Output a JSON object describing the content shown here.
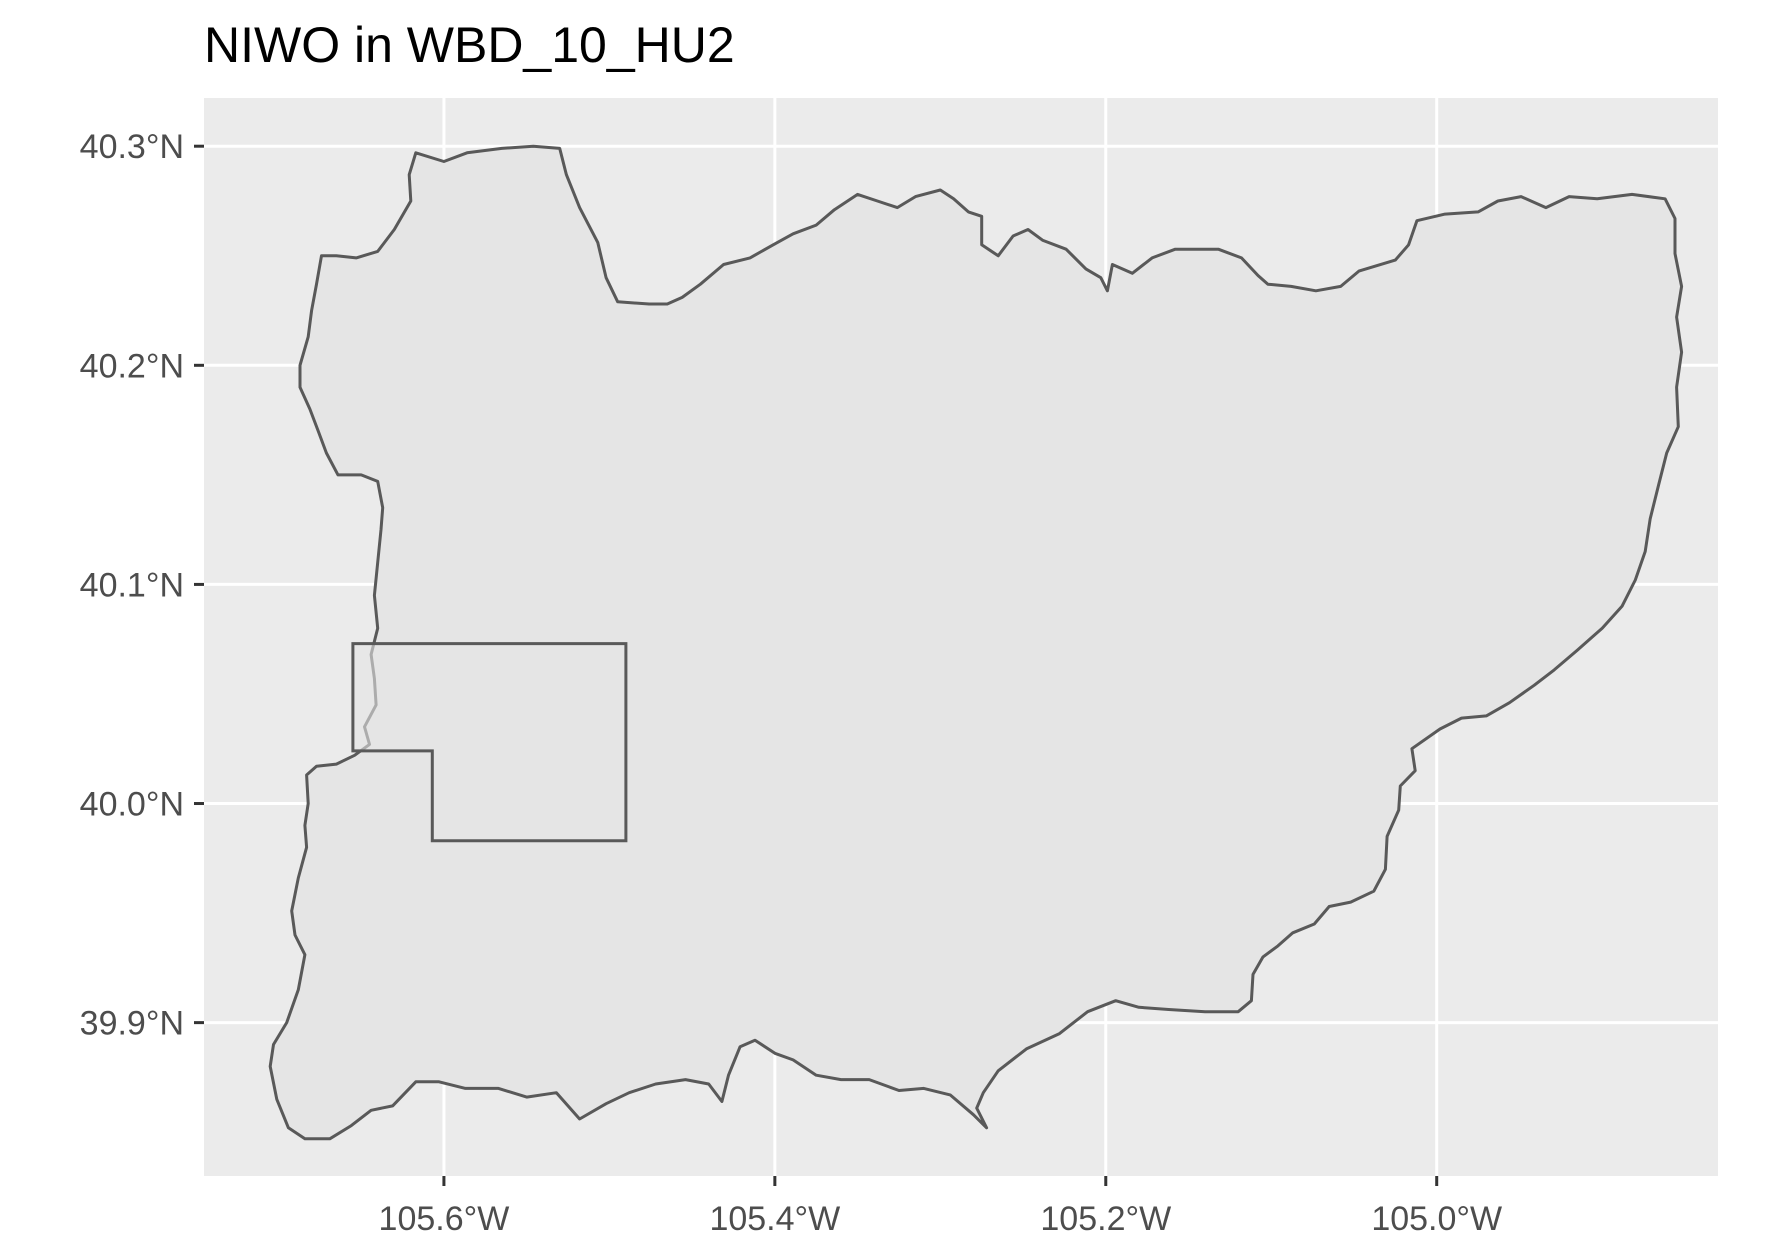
{
  "title": "NIWO in WBD_10_HU2",
  "colors": {
    "panel_background": "#ebebeb",
    "gridline": "#ffffff",
    "polygon_fill": "#e5e5e5",
    "polygon_outline": "#595959",
    "axis_text": "#4d4d4d",
    "title_text": "#000000"
  },
  "axes": {
    "x": {
      "ticks": [
        -105.6,
        -105.4,
        -105.2,
        -105.0
      ],
      "labels": [
        "105.6°W",
        "105.4°W",
        "105.2°W",
        "105.0°W"
      ],
      "range": [
        -105.745,
        -104.83
      ]
    },
    "y": {
      "ticks": [
        39.9,
        40.0,
        40.1,
        40.2,
        40.3
      ],
      "labels": [
        "39.9°N",
        "40.0°N",
        "40.1°N",
        "40.2°N",
        "40.3°N"
      ],
      "range": [
        39.83,
        40.322
      ]
    },
    "grid": true
  },
  "features": {
    "watershed": {
      "layer": "WBD_10_HU2",
      "coords": [
        [
          -105.617,
          40.297
        ],
        [
          -105.6,
          40.293
        ],
        [
          -105.586,
          40.297
        ],
        [
          -105.565,
          40.299
        ],
        [
          -105.546,
          40.3
        ],
        [
          -105.53,
          40.299
        ],
        [
          -105.526,
          40.287
        ],
        [
          -105.518,
          40.272
        ],
        [
          -105.507,
          40.256
        ],
        [
          -105.502,
          40.24
        ],
        [
          -105.495,
          40.229
        ],
        [
          -105.476,
          40.228
        ],
        [
          -105.465,
          40.228
        ],
        [
          -105.456,
          40.231
        ],
        [
          -105.445,
          40.237
        ],
        [
          -105.431,
          40.246
        ],
        [
          -105.415,
          40.249
        ],
        [
          -105.401,
          40.255
        ],
        [
          -105.389,
          40.26
        ],
        [
          -105.375,
          40.264
        ],
        [
          -105.364,
          40.271
        ],
        [
          -105.35,
          40.278
        ],
        [
          -105.338,
          40.275
        ],
        [
          -105.326,
          40.272
        ],
        [
          -105.315,
          40.277
        ],
        [
          -105.3,
          40.28
        ],
        [
          -105.292,
          40.276
        ],
        [
          -105.283,
          40.27
        ],
        [
          -105.275,
          40.268
        ],
        [
          -105.275,
          40.255
        ],
        [
          -105.265,
          40.25
        ],
        [
          -105.256,
          40.259
        ],
        [
          -105.247,
          40.262
        ],
        [
          -105.238,
          40.257
        ],
        [
          -105.224,
          40.253
        ],
        [
          -105.212,
          40.244
        ],
        [
          -105.203,
          40.24
        ],
        [
          -105.199,
          40.234
        ],
        [
          -105.196,
          40.246
        ],
        [
          -105.184,
          40.242
        ],
        [
          -105.172,
          40.249
        ],
        [
          -105.158,
          40.253
        ],
        [
          -105.146,
          40.253
        ],
        [
          -105.132,
          40.253
        ],
        [
          -105.118,
          40.249
        ],
        [
          -105.108,
          40.241
        ],
        [
          -105.102,
          40.237
        ],
        [
          -105.088,
          40.236
        ],
        [
          -105.073,
          40.234
        ],
        [
          -105.058,
          40.236
        ],
        [
          -105.047,
          40.243
        ],
        [
          -105.025,
          40.248
        ],
        [
          -105.017,
          40.255
        ],
        [
          -105.012,
          40.266
        ],
        [
          -104.995,
          40.269
        ],
        [
          -104.975,
          40.27
        ],
        [
          -104.963,
          40.275
        ],
        [
          -104.949,
          40.277
        ],
        [
          -104.934,
          40.272
        ],
        [
          -104.92,
          40.277
        ],
        [
          -104.903,
          40.276
        ],
        [
          -104.882,
          40.278
        ],
        [
          -104.862,
          40.276
        ],
        [
          -104.856,
          40.267
        ],
        [
          -104.856,
          40.251
        ],
        [
          -104.852,
          40.236
        ],
        [
          -104.855,
          40.222
        ],
        [
          -104.852,
          40.206
        ],
        [
          -104.855,
          40.19
        ],
        [
          -104.854,
          40.172
        ],
        [
          -104.861,
          40.16
        ],
        [
          -104.866,
          40.145
        ],
        [
          -104.871,
          40.13
        ],
        [
          -104.874,
          40.115
        ],
        [
          -104.88,
          40.102
        ],
        [
          -104.888,
          40.09
        ],
        [
          -104.9,
          40.08
        ],
        [
          -104.915,
          40.07
        ],
        [
          -104.929,
          40.061
        ],
        [
          -104.941,
          40.054
        ],
        [
          -104.956,
          40.046
        ],
        [
          -104.97,
          40.04
        ],
        [
          -104.985,
          40.039
        ],
        [
          -104.998,
          40.034
        ],
        [
          -105.015,
          40.025
        ],
        [
          -105.013,
          40.015
        ],
        [
          -105.022,
          40.008
        ],
        [
          -105.023,
          39.997
        ],
        [
          -105.03,
          39.985
        ],
        [
          -105.031,
          39.97
        ],
        [
          -105.038,
          39.96
        ],
        [
          -105.052,
          39.955
        ],
        [
          -105.065,
          39.953
        ],
        [
          -105.074,
          39.945
        ],
        [
          -105.087,
          39.941
        ],
        [
          -105.096,
          39.935
        ],
        [
          -105.105,
          39.93
        ],
        [
          -105.111,
          39.922
        ],
        [
          -105.112,
          39.91
        ],
        [
          -105.12,
          39.905
        ],
        [
          -105.14,
          39.905
        ],
        [
          -105.162,
          39.906
        ],
        [
          -105.18,
          39.907
        ],
        [
          -105.194,
          39.91
        ],
        [
          -105.211,
          39.905
        ],
        [
          -105.228,
          39.895
        ],
        [
          -105.248,
          39.888
        ],
        [
          -105.265,
          39.878
        ],
        [
          -105.274,
          39.868
        ],
        [
          -105.278,
          39.861
        ],
        [
          -105.272,
          39.852
        ],
        [
          -105.28,
          39.858
        ],
        [
          -105.294,
          39.867
        ],
        [
          -105.31,
          39.87
        ],
        [
          -105.325,
          39.869
        ],
        [
          -105.343,
          39.874
        ],
        [
          -105.36,
          39.874
        ],
        [
          -105.375,
          39.876
        ],
        [
          -105.389,
          39.883
        ],
        [
          -105.4,
          39.886
        ],
        [
          -105.412,
          39.892
        ],
        [
          -105.421,
          39.889
        ],
        [
          -105.428,
          39.876
        ],
        [
          -105.432,
          39.864
        ],
        [
          -105.44,
          39.872
        ],
        [
          -105.454,
          39.874
        ],
        [
          -105.472,
          39.872
        ],
        [
          -105.488,
          39.868
        ],
        [
          -105.502,
          39.863
        ],
        [
          -105.518,
          39.856
        ],
        [
          -105.532,
          39.868
        ],
        [
          -105.55,
          39.866
        ],
        [
          -105.567,
          39.87
        ],
        [
          -105.587,
          39.87
        ],
        [
          -105.603,
          39.873
        ],
        [
          -105.617,
          39.873
        ],
        [
          -105.631,
          39.862
        ],
        [
          -105.644,
          39.86
        ],
        [
          -105.656,
          39.853
        ],
        [
          -105.669,
          39.847
        ],
        [
          -105.684,
          39.847
        ],
        [
          -105.694,
          39.852
        ],
        [
          -105.701,
          39.865
        ],
        [
          -105.705,
          39.88
        ],
        [
          -105.703,
          39.89
        ],
        [
          -105.695,
          39.9
        ],
        [
          -105.688,
          39.915
        ],
        [
          -105.684,
          39.931
        ],
        [
          -105.69,
          39.94
        ],
        [
          -105.692,
          39.951
        ],
        [
          -105.688,
          39.966
        ],
        [
          -105.683,
          39.98
        ],
        [
          -105.684,
          39.99
        ],
        [
          -105.682,
          40.0
        ],
        [
          -105.683,
          40.013
        ],
        [
          -105.677,
          40.017
        ],
        [
          -105.665,
          40.018
        ],
        [
          -105.654,
          40.022
        ],
        [
          -105.645,
          40.027
        ],
        [
          -105.648,
          40.035
        ],
        [
          -105.641,
          40.045
        ],
        [
          -105.642,
          40.057
        ],
        [
          -105.644,
          40.068
        ],
        [
          -105.64,
          40.08
        ],
        [
          -105.642,
          40.095
        ],
        [
          -105.64,
          40.11
        ],
        [
          -105.638,
          40.125
        ],
        [
          -105.637,
          40.135
        ],
        [
          -105.64,
          40.147
        ],
        [
          -105.65,
          40.15
        ],
        [
          -105.664,
          40.15
        ],
        [
          -105.671,
          40.16
        ],
        [
          -105.676,
          40.17
        ],
        [
          -105.681,
          40.18
        ],
        [
          -105.687,
          40.19
        ],
        [
          -105.687,
          40.2
        ],
        [
          -105.682,
          40.213
        ],
        [
          -105.68,
          40.225
        ],
        [
          -105.677,
          40.237
        ],
        [
          -105.674,
          40.25
        ],
        [
          -105.665,
          40.25
        ],
        [
          -105.653,
          40.249
        ],
        [
          -105.64,
          40.252
        ],
        [
          -105.63,
          40.262
        ],
        [
          -105.62,
          40.275
        ],
        [
          -105.621,
          40.287
        ],
        [
          -105.617,
          40.297
        ]
      ]
    },
    "site_boundary": {
      "label": "NIWO",
      "coords": [
        [
          -105.655,
          40.073
        ],
        [
          -105.49,
          40.073
        ],
        [
          -105.49,
          39.983
        ],
        [
          -105.607,
          39.983
        ],
        [
          -105.607,
          40.024
        ],
        [
          -105.655,
          40.024
        ],
        [
          -105.655,
          40.073
        ]
      ]
    }
  }
}
